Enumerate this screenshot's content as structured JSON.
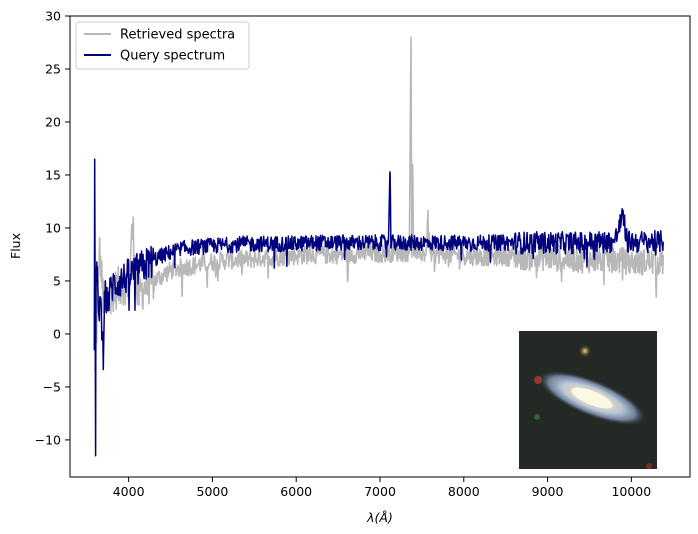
{
  "chart_data": {
    "type": "line",
    "xlabel": "λ(Å)",
    "ylabel": "Flux",
    "xlim": [
      3300,
      10700
    ],
    "ylim": [
      -13.5,
      30
    ],
    "xticks": [
      4000,
      5000,
      6000,
      7000,
      8000,
      9000,
      10000
    ],
    "yticks": [
      -10,
      -5,
      0,
      5,
      10,
      15,
      20,
      25,
      30
    ],
    "grid": false,
    "legend_position": "top-left",
    "colors": {
      "retrieved": "#b8b8b8",
      "query": "#00007f"
    },
    "series": [
      {
        "name": "Retrieved spectra",
        "x": [
          3600,
          3620,
          3650,
          3700,
          3750,
          3800,
          3900,
          4000,
          4050,
          4100,
          4200,
          4300,
          4400,
          4500,
          4600,
          4800,
          5000,
          5200,
          5400,
          5600,
          5800,
          6000,
          6200,
          6400,
          6600,
          6800,
          7000,
          7200,
          7350,
          7370,
          7380,
          7390,
          7400,
          7410,
          7420,
          7450,
          7550,
          7570,
          7600,
          7800,
          8000,
          8200,
          8400,
          8600,
          8800,
          9000,
          9200,
          9400,
          9600,
          9800,
          10000,
          10200,
          10380
        ],
        "y": [
          -3.5,
          1.0,
          8.0,
          3.0,
          3.5,
          4.0,
          4.5,
          5.0,
          10.3,
          3.5,
          4.5,
          5.0,
          5.5,
          6.0,
          6.2,
          6.5,
          6.8,
          7.0,
          7.0,
          7.2,
          7.3,
          7.4,
          7.5,
          7.5,
          7.5,
          7.6,
          7.6,
          7.7,
          7.7,
          28.0,
          7.8,
          16.0,
          7.8,
          8.0,
          7.8,
          7.6,
          7.6,
          11.0,
          7.6,
          7.5,
          7.4,
          7.3,
          7.3,
          7.3,
          7.2,
          7.2,
          7.1,
          7.0,
          7.0,
          7.0,
          6.8,
          6.8,
          6.8
        ]
      },
      {
        "name": "Query spectrum",
        "x": [
          3590,
          3595,
          3600,
          3605,
          3610,
          3620,
          3640,
          3660,
          3700,
          3710,
          3750,
          3800,
          3900,
          4000,
          4100,
          4200,
          4300,
          4400,
          4500,
          4600,
          4800,
          5000,
          5200,
          5400,
          5600,
          5800,
          6000,
          6200,
          6400,
          6600,
          6800,
          7000,
          7100,
          7120,
          7130,
          7140,
          7200,
          7400,
          7600,
          7800,
          8000,
          8200,
          8400,
          8600,
          8800,
          9000,
          9200,
          9400,
          9600,
          9800,
          9900,
          9950,
          10000,
          10200,
          10380
        ],
        "y": [
          -1.5,
          16.5,
          5.0,
          -11.5,
          4.0,
          6.0,
          2.0,
          3.5,
          -2.0,
          4.0,
          3.0,
          4.5,
          5.0,
          5.5,
          6.0,
          6.5,
          7.0,
          7.4,
          7.7,
          8.0,
          8.2,
          8.3,
          8.4,
          8.5,
          8.5,
          8.5,
          8.5,
          8.6,
          8.6,
          8.6,
          8.6,
          8.6,
          8.6,
          15.2,
          8.6,
          8.6,
          8.6,
          8.6,
          8.6,
          8.6,
          8.6,
          8.6,
          8.6,
          8.6,
          8.6,
          8.6,
          8.6,
          8.6,
          8.7,
          8.7,
          11.2,
          8.7,
          8.7,
          8.7,
          8.7
        ]
      }
    ],
    "inset": {
      "type": "image",
      "subject": "galaxy",
      "position": "bottom-right"
    }
  }
}
